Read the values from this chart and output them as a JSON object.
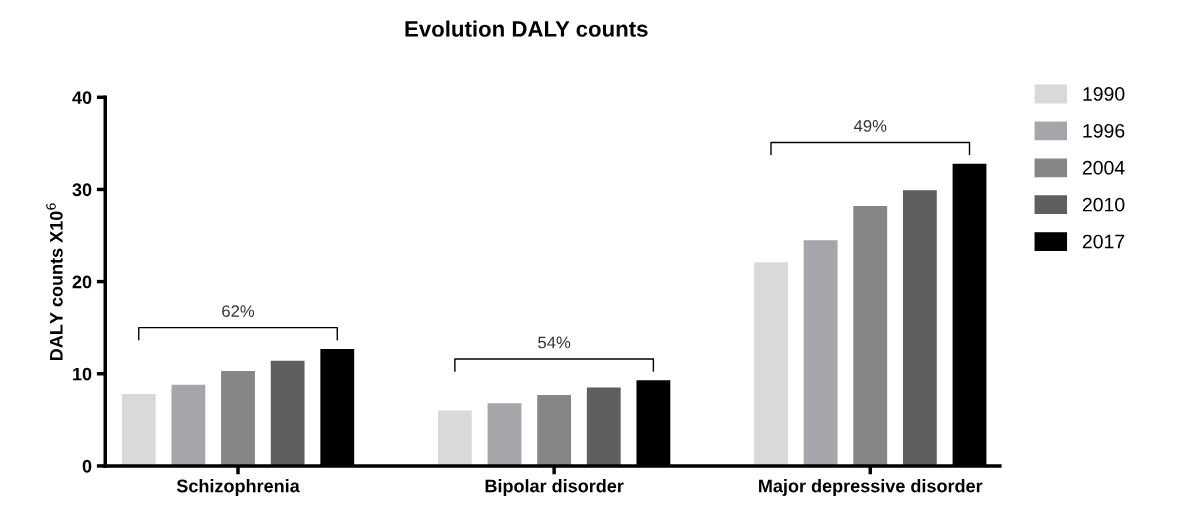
{
  "chart_data": {
    "type": "bar",
    "title": "Evolution DALY counts",
    "ylabel": "DALY counts X10$^{6}$",
    "categories": [
      "Schizophrenia",
      "Bipolar disorder",
      "Major depressive disorder"
    ],
    "series": [
      {
        "name": "1990",
        "color": "#d9d9d9",
        "values": [
          7.8,
          6.0,
          22.1
        ]
      },
      {
        "name": "1996",
        "color": "#a6a6aa",
        "values": [
          8.8,
          6.8,
          24.5
        ]
      },
      {
        "name": "2004",
        "color": "#868686",
        "values": [
          10.3,
          7.7,
          28.2
        ]
      },
      {
        "name": "2010",
        "color": "#5f5f5f",
        "values": [
          11.4,
          8.5,
          29.9
        ]
      },
      {
        "name": "2017",
        "color": "#000000",
        "values": [
          12.7,
          9.3,
          32.8
        ]
      }
    ],
    "ylim": [
      0,
      40
    ],
    "yticks": [
      0,
      10,
      20,
      30,
      40
    ],
    "grid": false,
    "legend": "right",
    "annotations": [
      "62%",
      "54%",
      "49%"
    ]
  }
}
